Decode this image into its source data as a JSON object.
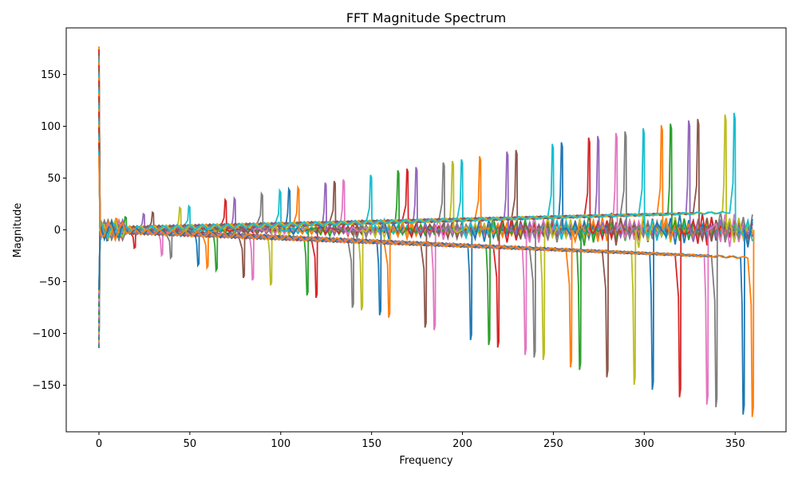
{
  "chart_data": {
    "type": "line",
    "title": "FFT Magnitude Spectrum",
    "xlabel": "Frequency",
    "ylabel": "Magnitude",
    "xlim": [
      -18,
      378
    ],
    "ylim": [
      -195,
      195
    ],
    "xticks": [
      0,
      50,
      100,
      150,
      200,
      250,
      300,
      350
    ],
    "yticks": [
      -150,
      -100,
      -50,
      0,
      50,
      100,
      150
    ],
    "grid": false,
    "legend": "none",
    "colors": [
      "#1f77b4",
      "#ff7f0e",
      "#2ca02c",
      "#d62728",
      "#9467bd",
      "#8c564b",
      "#e377c2",
      "#7f7f7f",
      "#bcbd22",
      "#17becf"
    ],
    "series_count": 72,
    "series_rule": "series k (k = 1..72) shows a spike at frequency 5k; upper-envelope spike peaks rise from ~10 at f=25 to ~115 at f=360 (peak approx 20 + 0.265*f, observed for purple/pink/olive/green/blue families), lower spikes descend from ~-10 at f=20 to ~-180 at f=360 (approx -0.5*f) for cyan/grey/brown/red/orange families; all series converge near f=0 with values between -115 and 180",
    "spike_peaks_upper": [
      {
        "x": 25,
        "y": 8
      },
      {
        "x": 50,
        "y": 17
      },
      {
        "x": 75,
        "y": 25
      },
      {
        "x": 100,
        "y": 33
      },
      {
        "x": 125,
        "y": 41
      },
      {
        "x": 150,
        "y": 49
      },
      {
        "x": 175,
        "y": 57
      },
      {
        "x": 200,
        "y": 65
      },
      {
        "x": 225,
        "y": 73
      },
      {
        "x": 250,
        "y": 81
      },
      {
        "x": 275,
        "y": 89
      },
      {
        "x": 300,
        "y": 97
      },
      {
        "x": 325,
        "y": 105
      },
      {
        "x": 350,
        "y": 112
      },
      {
        "x": 360,
        "y": 115
      }
    ],
    "spike_peaks_lower": [
      {
        "x": 25,
        "y": -12
      },
      {
        "x": 50,
        "y": -25
      },
      {
        "x": 75,
        "y": -37
      },
      {
        "x": 100,
        "y": -50
      },
      {
        "x": 125,
        "y": -62
      },
      {
        "x": 150,
        "y": -75
      },
      {
        "x": 175,
        "y": -87
      },
      {
        "x": 200,
        "y": -100
      },
      {
        "x": 225,
        "y": -112
      },
      {
        "x": 250,
        "y": -125
      },
      {
        "x": 275,
        "y": -137
      },
      {
        "x": 300,
        "y": -150
      },
      {
        "x": 325,
        "y": -162
      },
      {
        "x": 350,
        "y": -175
      },
      {
        "x": 360,
        "y": -180
      }
    ],
    "near_zero_extremes": {
      "max": 180,
      "min": -115
    }
  }
}
